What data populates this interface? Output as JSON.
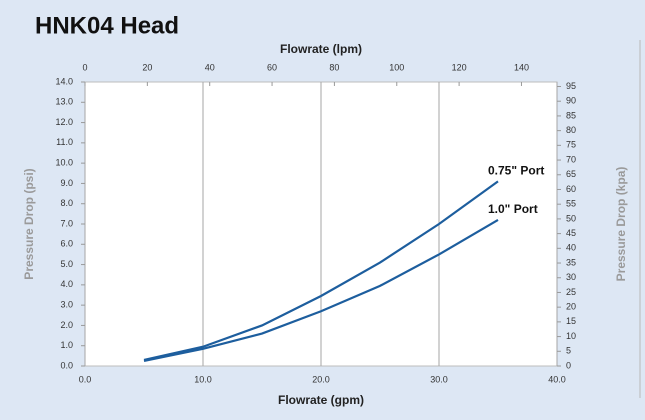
{
  "chart_data": {
    "type": "line",
    "title": "HNK04 Head",
    "x_label": "Flowrate (gpm)",
    "x2_label": "Flowrate (lpm)",
    "y_label": "Pressure Drop (psi)",
    "y2_label": "Pressure Drop (kpa)",
    "x": [
      5,
      10,
      15,
      20,
      25,
      30,
      35
    ],
    "series": [
      {
        "name": "0.75\" Port",
        "color": "#1d5e9e",
        "values": [
          0.3,
          0.95,
          2.0,
          3.45,
          5.1,
          7.0,
          9.1
        ]
      },
      {
        "name": "1.0\" Port",
        "color": "#1d5e9e",
        "values": [
          0.25,
          0.85,
          1.6,
          2.7,
          3.95,
          5.5,
          7.2
        ]
      }
    ],
    "xlim": [
      0,
      40
    ],
    "xticks": [
      {
        "value": 0,
        "label": "0.0"
      },
      {
        "value": 10,
        "label": "10.0"
      },
      {
        "value": 20,
        "label": "20.0"
      },
      {
        "value": 30,
        "label": "30.0"
      },
      {
        "value": 40,
        "label": "40.0"
      }
    ],
    "x2lim": [
      0,
      151.4
    ],
    "x2ticks": [
      0,
      20,
      40,
      60,
      80,
      100,
      120,
      140
    ],
    "ylim": [
      0,
      14
    ],
    "yticks": [
      {
        "value": 0,
        "label": "0.0"
      },
      {
        "value": 1,
        "label": "1.0"
      },
      {
        "value": 2,
        "label": "2.0"
      },
      {
        "value": 3,
        "label": "3.0"
      },
      {
        "value": 4,
        "label": "4.0"
      },
      {
        "value": 5,
        "label": "5.0"
      },
      {
        "value": 6,
        "label": "6.0"
      },
      {
        "value": 7,
        "label": "7.0"
      },
      {
        "value": 8,
        "label": "8.0"
      },
      {
        "value": 9,
        "label": "9.0"
      },
      {
        "value": 10,
        "label": "10.0"
      },
      {
        "value": 11,
        "label": "11.0"
      },
      {
        "value": 12,
        "label": "12.0"
      },
      {
        "value": 13,
        "label": "13.0"
      },
      {
        "value": 14,
        "label": "14.0"
      }
    ],
    "y2lim": [
      0,
      96.53
    ],
    "y2ticks": [
      0,
      5,
      10,
      15,
      20,
      25,
      30,
      35,
      40,
      45,
      50,
      55,
      60,
      65,
      70,
      75,
      80,
      85,
      90,
      95
    ],
    "xgrid": true
  }
}
